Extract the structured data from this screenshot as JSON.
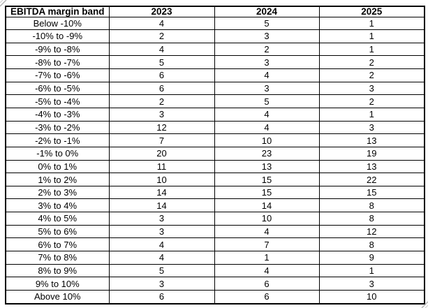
{
  "chart_data": {
    "type": "table",
    "title": "",
    "columns": [
      "EBITDA margin band",
      "2023",
      "2024",
      "2025"
    ],
    "rows": [
      [
        "Below -10%",
        4,
        5,
        1
      ],
      [
        "-10% to -9%",
        2,
        3,
        1
      ],
      [
        "-9% to -8%",
        4,
        2,
        1
      ],
      [
        "-8% to -7%",
        5,
        3,
        2
      ],
      [
        "-7% to -6%",
        6,
        4,
        2
      ],
      [
        "-6% to -5%",
        6,
        3,
        3
      ],
      [
        "-5% to -4%",
        2,
        5,
        2
      ],
      [
        "-4% to -3%",
        3,
        4,
        1
      ],
      [
        "-3% to -2%",
        12,
        4,
        3
      ],
      [
        "-2% to -1%",
        7,
        10,
        13
      ],
      [
        "-1% to 0%",
        20,
        23,
        19
      ],
      [
        "0% to 1%",
        11,
        13,
        13
      ],
      [
        "1% to 2%",
        10,
        15,
        22
      ],
      [
        "2% to 3%",
        14,
        15,
        15
      ],
      [
        "3% to 4%",
        14,
        14,
        8
      ],
      [
        "4% to 5%",
        3,
        10,
        8
      ],
      [
        "5% to 6%",
        3,
        4,
        12
      ],
      [
        "6% to 7%",
        4,
        7,
        8
      ],
      [
        "7% to 8%",
        4,
        1,
        9
      ],
      [
        "8% to 9%",
        5,
        4,
        1
      ],
      [
        "9% to 10%",
        3,
        6,
        3
      ],
      [
        "Above 10%",
        6,
        6,
        10
      ]
    ],
    "layout": {
      "grid": true,
      "header_bold": true,
      "cell_alignment": "center"
    },
    "colors": {
      "border": "#000000",
      "text": "#000000",
      "background": "#ffffff",
      "corner_handle": "#b3b3b3"
    }
  }
}
